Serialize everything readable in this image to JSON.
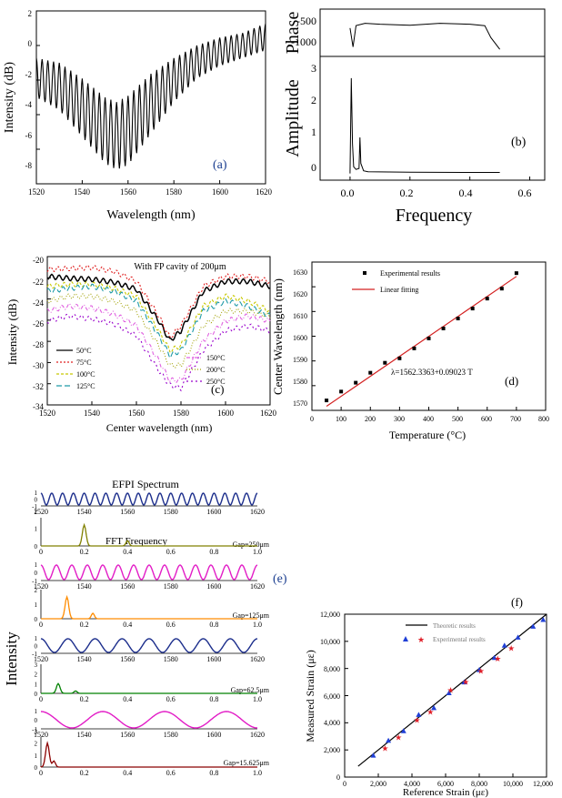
{
  "panels": {
    "a": {
      "letter": "(a)",
      "xlabel": "Wavelength (nm)",
      "ylabel": "Intensity (dB)",
      "xticks": [
        "1520",
        "1540",
        "1560",
        "1580",
        "1600",
        "1620"
      ],
      "yticks": [
        "2",
        "0",
        "-2",
        "-4",
        "-6",
        "-8"
      ]
    },
    "b": {
      "letter": "(b)",
      "ylabel_top": "Phase",
      "ylabel_bottom": "Amplitude",
      "xlabel": "Frequency",
      "xticks": [
        "0.0",
        "0.2",
        "0.4",
        "0.6"
      ],
      "phase_ticks": [
        "-500",
        "-1000"
      ],
      "amp_ticks": [
        "3",
        "2",
        "1",
        "0"
      ]
    },
    "c": {
      "letter": "(c)",
      "title": "With FP cavity of 200μm",
      "xlabel": "Center wavelength (nm)",
      "ylabel": "Intensity (dB)",
      "xticks": [
        "1520",
        "1540",
        "1560",
        "1580",
        "1600",
        "1620"
      ],
      "yticks": [
        "-20",
        "-22",
        "-24",
        "-26",
        "-28",
        "-30",
        "-32",
        "-34"
      ]
    },
    "d": {
      "letter": "(d)",
      "xlabel": "Temperature (°C)",
      "ylabel": "Center Wavelength (nm)",
      "legend_points": "Experimental results",
      "legend_line": "Linear fitting",
      "equation": "λ=1562.3363+0.09023 T",
      "xticks": [
        "0",
        "100",
        "200",
        "300",
        "400",
        "500",
        "600",
        "700",
        "800"
      ],
      "yticks": [
        "1630",
        "1620",
        "1610",
        "1600",
        "1590",
        "1580",
        "1570"
      ]
    },
    "e": {
      "letter": "(e)",
      "title": "EFPI Spectrum",
      "fft_title": "FFT Frequency",
      "ylabel": "Intensity",
      "wl_ticks": [
        "1520",
        "1540",
        "1560",
        "1580",
        "1600",
        "1620"
      ],
      "freq_ticks": [
        "0",
        "0.2",
        "0.4",
        "0.6",
        "0.8",
        "1.0"
      ],
      "gaps": [
        "Gap=250μm",
        "Gap=125μm",
        "Gap=62.5μm",
        "Gap=15.625μm"
      ]
    },
    "f": {
      "letter": "(f)",
      "xlabel": "Reference Strain (με)",
      "ylabel": "Measured Strain (με)",
      "legend_line": "Theoretic results",
      "legend_points": "Experimental results",
      "xticks": [
        "0",
        "2,000",
        "4,000",
        "6,000",
        "8,000",
        "10,000",
        "12,000"
      ],
      "yticks": [
        "12,000",
        "10,000",
        "8,000",
        "6,000",
        "4,000",
        "2,000",
        "0"
      ]
    }
  },
  "colors": {
    "ink": "#000000",
    "temp_50": "#000000",
    "temp_75": "#e02020",
    "temp_100": "#c8c800",
    "temp_125": "#1f9aa8",
    "temp_150": "#e060e0",
    "temp_200": "#a0a000",
    "temp_250": "#9900cc",
    "efpi_1": "#1c2e8c",
    "efpi_2": "#e21cc6",
    "efpi_3": "#1c2e8c",
    "efpi_4": "#e21cc6",
    "fft_1": "#808000",
    "fft_2": "#ff8c00",
    "fft_3": "#008000",
    "fft_4": "#8b0000",
    "fit_line": "#d32020",
    "theory_line": "#000000",
    "exp_blue": "#1f3fd6",
    "exp_red": "#e0202a"
  },
  "chart_data": [
    {
      "panel": "a",
      "type": "line",
      "xlabel": "Wavelength (nm)",
      "ylabel": "Intensity (dB)",
      "xlim": [
        1520,
        1620
      ],
      "ylim": [
        -9,
        2
      ],
      "envelope_x": [
        1520,
        1530,
        1540,
        1550,
        1555,
        1560,
        1570,
        1580,
        1590,
        1600,
        1610,
        1620
      ],
      "envelope_upper": [
        -1.0,
        -1.3,
        -2.3,
        -3.5,
        -3.8,
        -3.4,
        -2.0,
        -1.0,
        -0.2,
        0.3,
        0.6,
        1.2
      ],
      "envelope_lower": [
        -3.5,
        -4.3,
        -6.0,
        -7.7,
        -8.1,
        -7.8,
        -5.8,
        -3.8,
        -2.3,
        -1.5,
        -1.0,
        -0.5
      ],
      "fringe_period_nm": 2.5
    },
    {
      "panel": "b",
      "type": "line",
      "xlabel": "Frequency",
      "xlim": [
        -0.1,
        0.65
      ],
      "series": [
        {
          "name": "Phase",
          "x": [
            0.0,
            0.01,
            0.02,
            0.05,
            0.1,
            0.2,
            0.3,
            0.4,
            0.45,
            0.47,
            0.5
          ],
          "y": [
            -700,
            -1100,
            -650,
            -600,
            -620,
            -640,
            -600,
            -620,
            -650,
            -900,
            -1150
          ],
          "ylim": [
            -1300,
            -300
          ]
        },
        {
          "name": "Amplitude",
          "x": [
            0.0,
            0.004,
            0.008,
            0.012,
            0.02,
            0.03,
            0.033,
            0.036,
            0.045,
            0.06,
            0.2,
            0.4,
            0.5
          ],
          "y": [
            0.0,
            2.85,
            0.9,
            0.2,
            0.12,
            0.15,
            1.08,
            0.3,
            0.08,
            0.05,
            0.04,
            0.03,
            0.03
          ],
          "ylim": [
            -0.2,
            3.5
          ]
        }
      ]
    },
    {
      "panel": "c",
      "type": "line",
      "title": "With FP cavity of 200μm",
      "xlabel": "Center wavelength (nm)",
      "ylabel": "Intensity (dB)",
      "xlim": [
        1520,
        1620
      ],
      "ylim": [
        -34,
        -19
      ],
      "x": [
        1520,
        1530,
        1540,
        1550,
        1560,
        1570,
        1575,
        1580,
        1590,
        1600,
        1610,
        1620
      ],
      "series": [
        {
          "name": "50°C",
          "y": [
            -21.0,
            -21.2,
            -21.3,
            -21.6,
            -22.3,
            -25.5,
            -27.5,
            -26.5,
            -22.5,
            -21.5,
            -21.5,
            -22.0
          ]
        },
        {
          "name": "75°C",
          "y": [
            -20.3,
            -20.2,
            -20.1,
            -20.5,
            -21.5,
            -25.0,
            -27.2,
            -26.0,
            -22.0,
            -21.0,
            -21.0,
            -21.5
          ]
        },
        {
          "name": "100°C",
          "y": [
            -22.0,
            -21.8,
            -21.8,
            -22.2,
            -23.0,
            -26.5,
            -28.5,
            -28.0,
            -24.0,
            -23.0,
            -23.5,
            -24.5
          ]
        },
        {
          "name": "125°C",
          "y": [
            -22.5,
            -22.2,
            -22.0,
            -22.5,
            -23.5,
            -27.0,
            -29.0,
            -28.5,
            -24.5,
            -23.5,
            -24.0,
            -25.0
          ]
        },
        {
          "name": "150°C",
          "y": [
            -24.5,
            -24.0,
            -24.2,
            -24.8,
            -26.0,
            -29.5,
            -31.5,
            -31.5,
            -27.5,
            -25.5,
            -25.0,
            -25.5
          ]
        },
        {
          "name": "200°C",
          "y": [
            -23.5,
            -23.0,
            -23.0,
            -23.5,
            -24.5,
            -28.0,
            -30.0,
            -30.0,
            -26.0,
            -24.5,
            -24.5,
            -25.0
          ]
        },
        {
          "name": "250°C",
          "y": [
            -25.5,
            -25.0,
            -25.3,
            -25.8,
            -27.0,
            -30.5,
            -32.0,
            -32.3,
            -28.5,
            -26.5,
            -26.0,
            -26.5
          ]
        }
      ]
    },
    {
      "panel": "d",
      "type": "scatter",
      "xlabel": "Temperature (°C)",
      "ylabel": "Center Wavelength (nm)",
      "xlim": [
        0,
        800
      ],
      "ylim": [
        1565,
        1632
      ],
      "series": [
        {
          "name": "Experimental results",
          "x": [
            50,
            100,
            150,
            200,
            250,
            300,
            350,
            400,
            450,
            500,
            550,
            600,
            650,
            700
          ],
          "y": [
            1569.5,
            1573.5,
            1577.5,
            1582.0,
            1586.5,
            1588.5,
            1593.0,
            1597.5,
            1602.0,
            1606.5,
            1611.0,
            1615.5,
            1620.0,
            1627.0
          ]
        },
        {
          "name": "Linear fitting",
          "x": [
            50,
            700
          ],
          "y": [
            1566.85,
            1625.5
          ]
        }
      ]
    },
    {
      "panel": "e",
      "type": "line",
      "title": "EFPI Spectrum",
      "ylabel": "Intensity",
      "spectra": [
        {
          "label": "Gap=250μm",
          "fringes": 20,
          "ylim": [
            -1,
            1
          ],
          "wl_range": [
            1520,
            1620
          ]
        },
        {
          "label": "Gap=125μm",
          "fringes": 14,
          "ylim": [
            -1,
            1
          ],
          "wl_range": [
            1520,
            1620
          ]
        },
        {
          "label": "Gap=62.5μm",
          "fringes": 8,
          "ylim": [
            -1,
            1
          ],
          "wl_range": [
            1520,
            1620
          ]
        },
        {
          "label": "Gap=15.625μm",
          "fringes": 3.5,
          "ylim": [
            -1,
            1
          ],
          "wl_range": [
            1520,
            1620
          ]
        }
      ],
      "fft": [
        {
          "label": "Gap=250μm",
          "peak_x": 0.2,
          "peak_y": 1.2,
          "ylim": [
            0,
            1.6
          ]
        },
        {
          "label": "Gap=125μm",
          "peak_x": 0.12,
          "peak_y": 1.5,
          "ylim": [
            0,
            2.0
          ]
        },
        {
          "label": "Gap=62.5μm",
          "peak_x": 0.08,
          "peak_y": 1.0,
          "ylim": [
            0,
            3.0
          ]
        },
        {
          "label": "Gap=15.625μm",
          "peak_x": 0.03,
          "peak_y": 2.0,
          "ylim": [
            0,
            2.5
          ]
        }
      ]
    },
    {
      "panel": "f",
      "type": "scatter",
      "xlabel": "Reference Strain (με)",
      "ylabel": "Measured Strain (με)",
      "xlim": [
        0,
        12000
      ],
      "ylim": [
        0,
        12000
      ],
      "series": [
        {
          "name": "Theoretic results",
          "x": [
            800,
            12000
          ],
          "y": [
            800,
            12000
          ]
        },
        {
          "name": "Experimental results",
          "marker": "triangle",
          "x": [
            1700,
            2600,
            3500,
            4400,
            5300,
            6200,
            7100,
            8000,
            8900,
            9500,
            10300,
            11200,
            11800
          ],
          "y": [
            1600,
            2700,
            3400,
            4600,
            5100,
            6200,
            7000,
            7900,
            8800,
            9700,
            10300,
            11100,
            11600
          ]
        },
        {
          "name": "Experimental results",
          "marker": "star",
          "x": [
            2400,
            3200,
            4300,
            5100,
            6300,
            7200,
            8100,
            9100,
            9900
          ],
          "y": [
            2100,
            2900,
            4200,
            4800,
            6400,
            7000,
            7800,
            8700,
            9500
          ]
        }
      ]
    }
  ]
}
